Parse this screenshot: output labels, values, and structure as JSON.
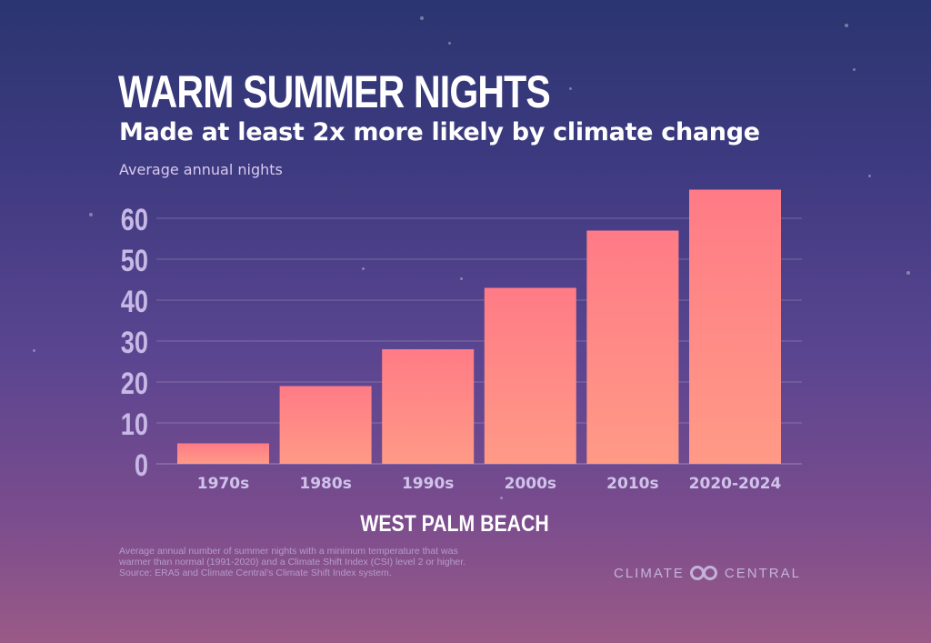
{
  "title": "WARM SUMMER NIGHTS",
  "subtitle": "Made at least 2x more likely by climate change",
  "location": "WEST PALM BEACH",
  "footnote": [
    "Average annual number of summer nights with a minimum temperature that was",
    "warmer than normal (1991-2020) and a Climate Shift Index (CSI) level 2 or higher.",
    "Source: ERA5 and Climate Central's Climate Shift Index system."
  ],
  "logo": {
    "left": "CLIMATE",
    "right": "CENTRAL"
  },
  "colors": {
    "bar_top": "#ff7b86",
    "bar_bottom": "#ff9a86",
    "tick_label": "#c7b8e6",
    "category_label": "#d0c3ea",
    "gridline": "rgba(255,255,255,0.22)"
  },
  "chart_data": {
    "type": "bar",
    "title": "WARM SUMMER NIGHTS",
    "subtitle": "Made at least 2x more likely by climate change",
    "ylabel": "Average annual nights",
    "xlabel": "WEST PALM BEACH",
    "categories": [
      "1970s",
      "1980s",
      "1990s",
      "2000s",
      "2010s",
      "2020-2024"
    ],
    "values": [
      5,
      19,
      28,
      43,
      57,
      67
    ],
    "yticks": [
      0,
      10,
      20,
      30,
      40,
      50,
      60
    ],
    "ylim": [
      0,
      67
    ],
    "grid": true,
    "legend": "none"
  }
}
